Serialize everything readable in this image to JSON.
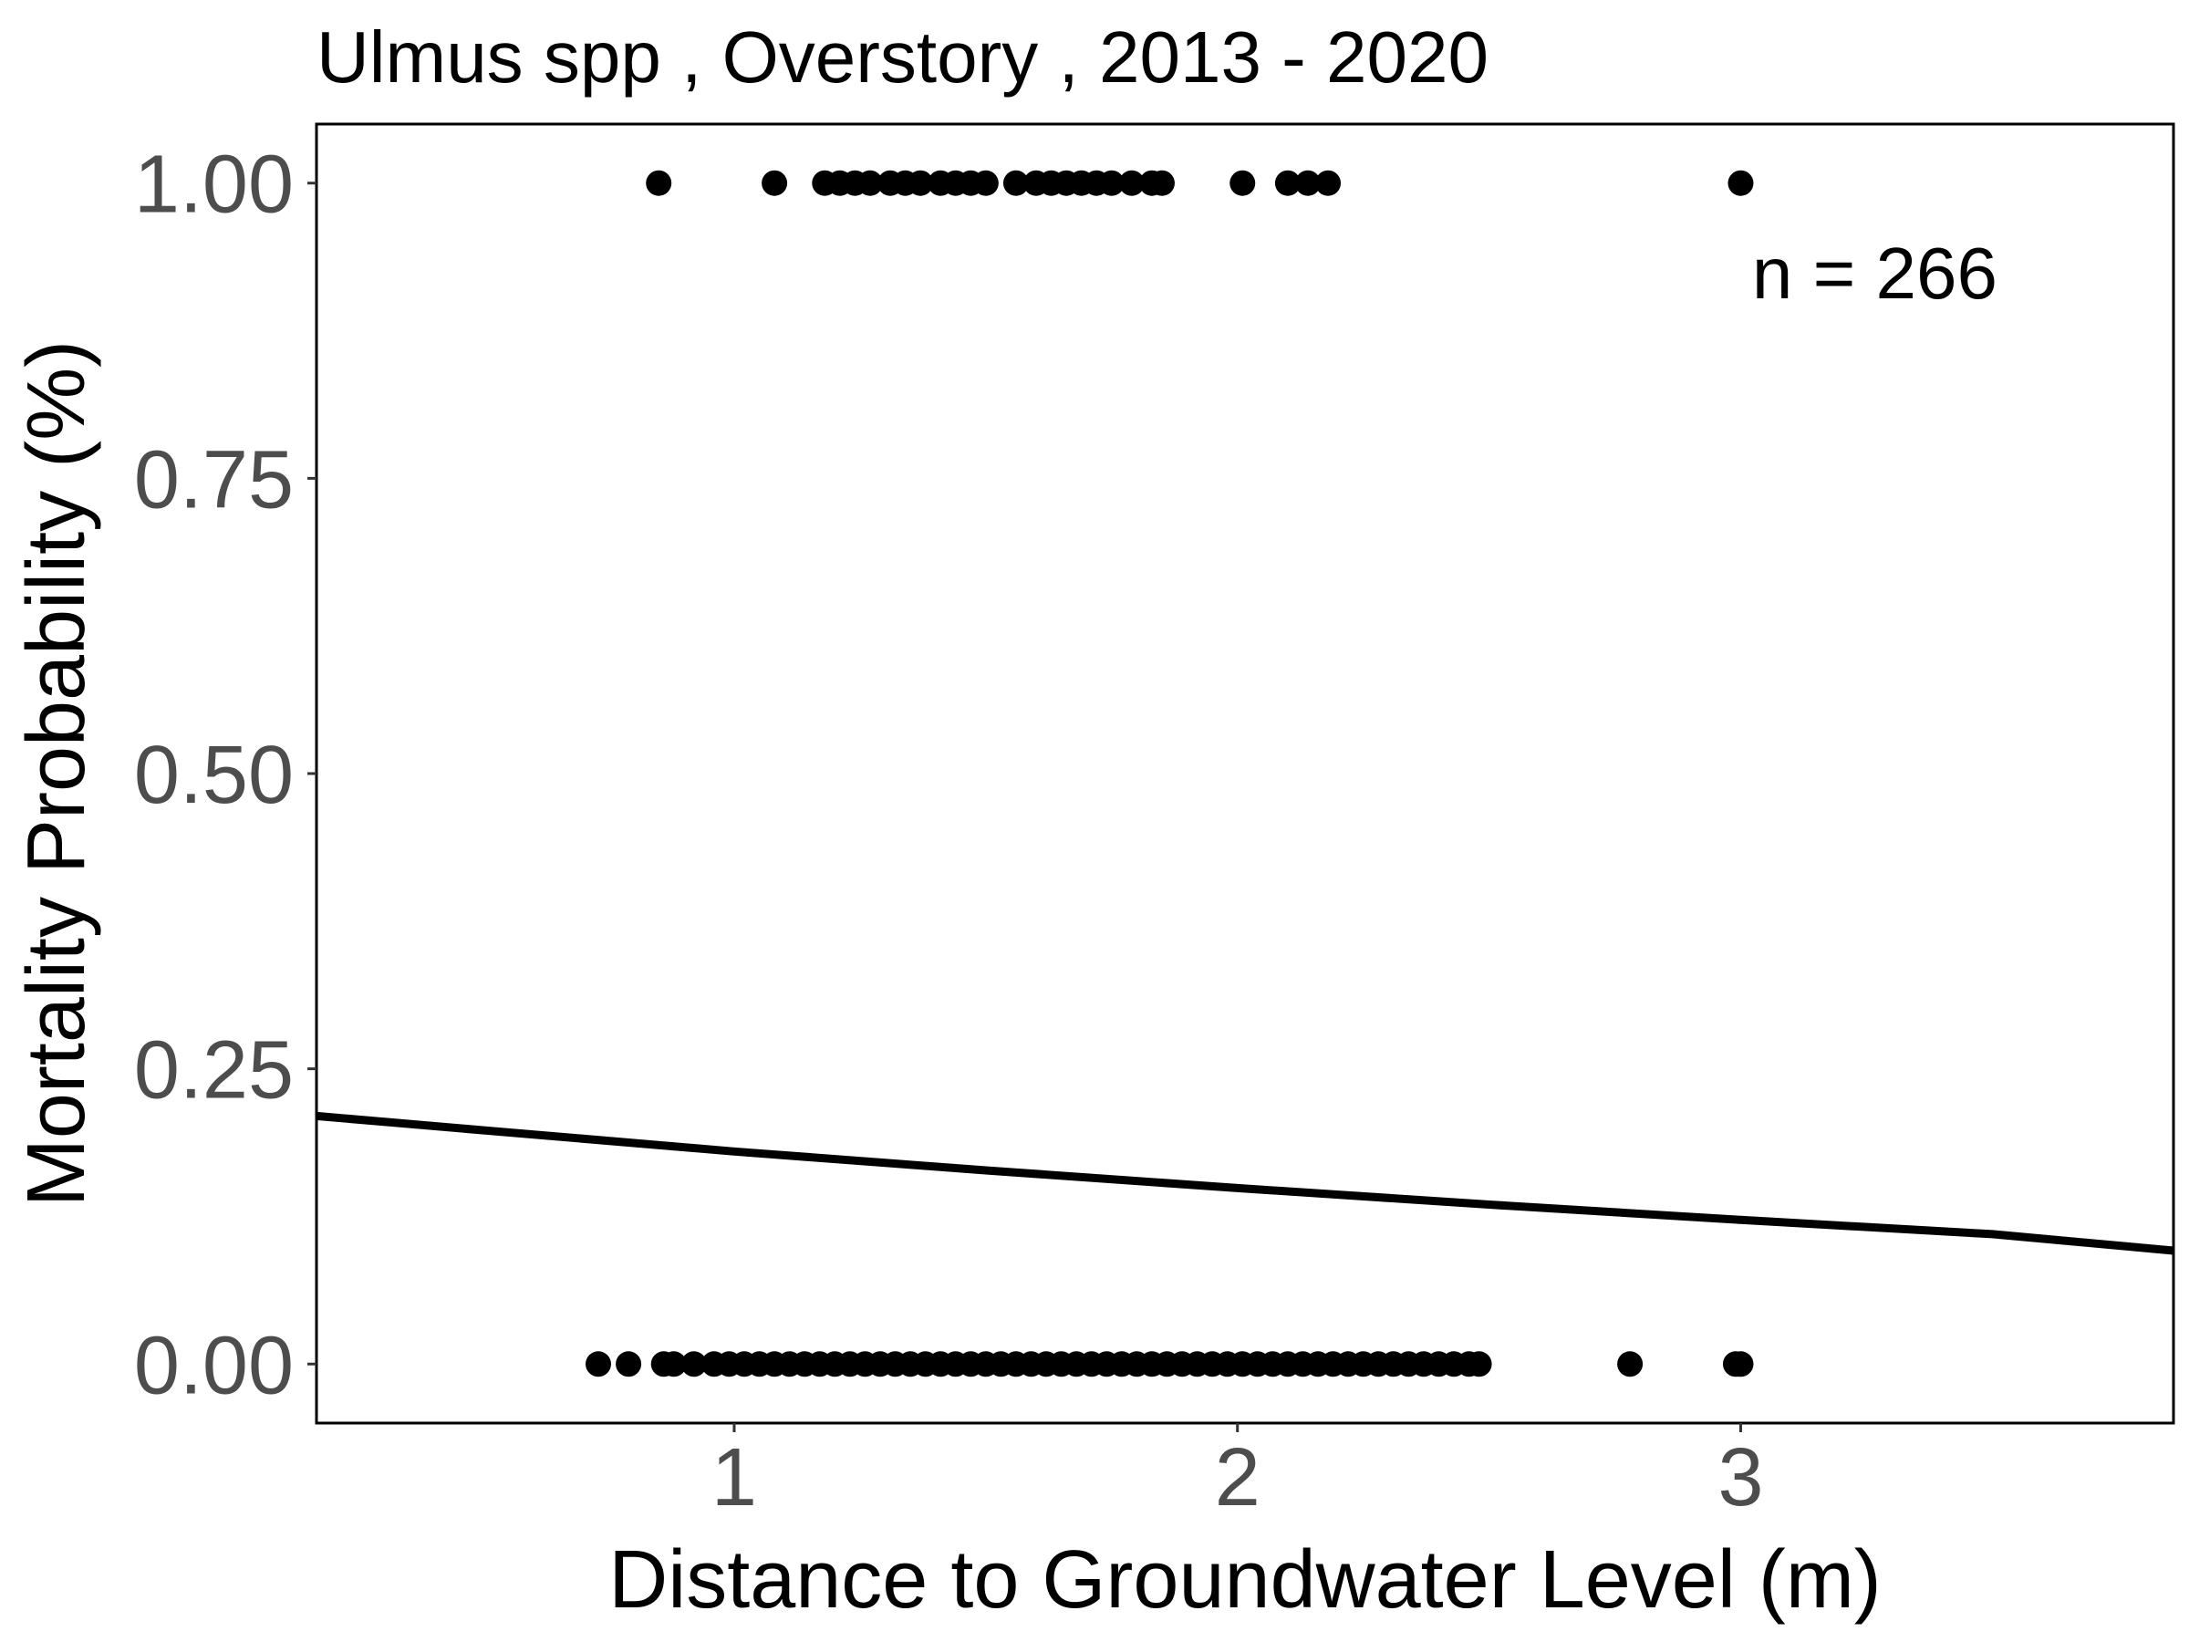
{
  "chart_data": {
    "type": "scatter",
    "title": "Ulmus spp , Overstory , 2013 - 2020",
    "xlabel": "Distance to Groundwater Level (m)",
    "ylabel": "Mortality Probability (%)",
    "xlim": [
      0.17,
      3.86
    ],
    "ylim": [
      -0.05,
      1.05
    ],
    "x_ticks": [
      1,
      2,
      3
    ],
    "x_tick_labels": [
      "1",
      "2",
      "3"
    ],
    "y_ticks": [
      0,
      0.25,
      0.5,
      0.75,
      1
    ],
    "y_tick_labels": [
      "0.00",
      "0.25",
      "0.50",
      "0.75",
      "1.00"
    ],
    "grid": false,
    "annotation": "n =  266",
    "annotation_position": "top-right",
    "point_color": "#000000",
    "line_color": "#000000",
    "series": [
      {
        "kind": "points",
        "x": [
          0.85,
          1.08,
          1.18,
          1.21,
          1.24,
          1.27,
          1.31,
          1.34,
          1.37,
          1.41,
          1.44,
          1.47,
          1.5,
          1.56,
          1.6,
          1.63,
          1.66,
          1.69,
          1.72,
          1.75,
          1.79,
          1.83,
          1.85,
          2.01,
          2.1,
          2.14,
          2.18,
          3.0,
          0.73,
          0.79,
          0.86,
          0.88,
          0.92,
          0.96,
          0.99,
          1.02,
          1.05,
          1.08,
          1.11,
          1.14,
          1.17,
          1.2,
          1.23,
          1.26,
          1.29,
          1.32,
          1.35,
          1.38,
          1.41,
          1.44,
          1.47,
          1.5,
          1.53,
          1.56,
          1.59,
          1.62,
          1.65,
          1.68,
          1.71,
          1.74,
          1.77,
          1.8,
          1.83,
          1.86,
          1.89,
          1.92,
          1.95,
          1.98,
          2.01,
          2.04,
          2.07,
          2.1,
          2.13,
          2.16,
          2.19,
          2.22,
          2.25,
          2.28,
          2.31,
          2.34,
          2.37,
          2.4,
          2.43,
          2.46,
          2.48,
          2.78,
          2.99,
          3.0
        ],
        "y": [
          1,
          1,
          1,
          1,
          1,
          1,
          1,
          1,
          1,
          1,
          1,
          1,
          1,
          1,
          1,
          1,
          1,
          1,
          1,
          1,
          1,
          1,
          1,
          1,
          1,
          1,
          1,
          1,
          0,
          0,
          0,
          0,
          0,
          0,
          0,
          0,
          0,
          0,
          0,
          0,
          0,
          0,
          0,
          0,
          0,
          0,
          0,
          0,
          0,
          0,
          0,
          0,
          0,
          0,
          0,
          0,
          0,
          0,
          0,
          0,
          0,
          0,
          0,
          0,
          0,
          0,
          0,
          0,
          0,
          0,
          0,
          0,
          0,
          0,
          0,
          0,
          0,
          0,
          0,
          0,
          0,
          0,
          0,
          0,
          0,
          0,
          0,
          0
        ]
      },
      {
        "kind": "fitted_line",
        "x": [
          0.17,
          0.5,
          1.0,
          1.5,
          2.0,
          2.5,
          3.0,
          3.5,
          3.86
        ],
        "y": [
          0.21,
          0.198,
          0.18,
          0.164,
          0.149,
          0.135,
          0.122,
          0.11,
          0.096
        ]
      }
    ]
  }
}
